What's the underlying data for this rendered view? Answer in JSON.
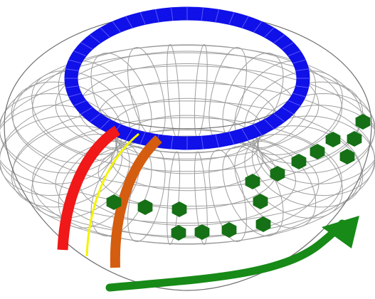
{
  "colors": {
    "background": "#ffffff",
    "grid": "#9a9a9a",
    "outline": "#6f6f6f",
    "ring": "#1010e8",
    "band_red": "#f01818",
    "band_yellow": "#f4f400",
    "band_orange": "#d45d10",
    "hexagon": "#167016",
    "arrow": "#178a17"
  },
  "torus_mesh": {
    "meridians": 30,
    "parallels": 16
  },
  "ring": {
    "segments": 48
  },
  "hexagon_path": {
    "count": 17
  },
  "icons": {
    "arrow": "curved-arrow-icon",
    "hexagon": "hexagon-marker-icon"
  }
}
